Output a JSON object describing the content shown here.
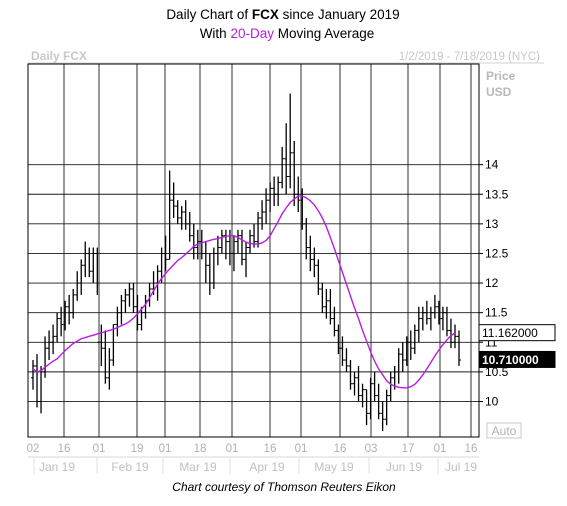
{
  "chart_data": {
    "type": "line",
    "title": {
      "line1_prefix": "Daily Chart of ",
      "line1_ticker": "FCX",
      "line1_suffix": " since January 2019",
      "line2_prefix": "With ",
      "line2_highlight": "20-Day",
      "line2_suffix": " Moving Average"
    },
    "chart_label": "Daily FCX",
    "date_range": "1/2/2019 - 7/18/2019 (NYC)",
    "ylabel": [
      "Price",
      "USD"
    ],
    "ylim": [
      9.4,
      15.7
    ],
    "y_ticks": [
      10,
      10.5,
      11,
      11.5,
      12,
      12.5,
      13,
      13.5,
      14
    ],
    "y_tick_labels": [
      "10",
      "10.5",
      "11",
      "11.5",
      "12",
      "12.5",
      "13",
      "13.5",
      "14"
    ],
    "x_day_ticks": [
      "02",
      "16",
      "01",
      "19",
      "01",
      "18",
      "01",
      "16",
      "01",
      "16",
      "03",
      "17",
      "01",
      "16"
    ],
    "x_month_labels": [
      "Jan 19",
      "Feb 19",
      "Mar 19",
      "Apr 19",
      "May 19",
      "Jun 19",
      "Jul 19"
    ],
    "auto_button": "Auto",
    "price_tags": [
      {
        "value": 11.162,
        "label": "11.162000",
        "style": "outline"
      },
      {
        "value": 10.71,
        "label": "10.710000",
        "style": "filled"
      }
    ],
    "series": [
      {
        "kind": "ohlc",
        "color": "#000000",
        "bars": [
          [
            10.4,
            10.7,
            10.2,
            10.6
          ],
          [
            10.6,
            10.8,
            9.9,
            10.0
          ],
          [
            10.0,
            10.6,
            9.8,
            10.5
          ],
          [
            10.5,
            11.1,
            10.4,
            10.9
          ],
          [
            10.9,
            11.2,
            10.7,
            11.0
          ],
          [
            11.0,
            11.3,
            10.8,
            11.1
          ],
          [
            11.1,
            11.5,
            11.0,
            11.4
          ],
          [
            11.4,
            11.6,
            11.1,
            11.3
          ],
          [
            11.3,
            11.7,
            11.2,
            11.6
          ],
          [
            11.6,
            11.8,
            11.3,
            11.5
          ],
          [
            11.5,
            11.9,
            11.4,
            11.8
          ],
          [
            11.8,
            12.2,
            11.7,
            12.0
          ],
          [
            12.0,
            12.4,
            11.8,
            12.3
          ],
          [
            12.3,
            12.7,
            12.1,
            12.5
          ],
          [
            12.5,
            12.6,
            12.1,
            12.2
          ],
          [
            12.2,
            12.6,
            12.0,
            12.5
          ],
          [
            12.5,
            12.6,
            11.8,
            11.0
          ],
          [
            11.0,
            11.3,
            10.6,
            10.9
          ],
          [
            10.9,
            11.2,
            10.3,
            10.4
          ],
          [
            10.4,
            10.9,
            10.2,
            10.7
          ],
          [
            10.7,
            11.3,
            10.6,
            11.3
          ],
          [
            11.3,
            11.6,
            11.1,
            11.5
          ],
          [
            11.5,
            11.8,
            11.3,
            11.7
          ],
          [
            11.7,
            11.9,
            11.5,
            11.8
          ],
          [
            11.8,
            12.0,
            11.6,
            11.9
          ],
          [
            11.9,
            12.0,
            11.5,
            11.6
          ],
          [
            11.6,
            11.8,
            11.2,
            11.3
          ],
          [
            11.3,
            11.6,
            11.2,
            11.5
          ],
          [
            11.5,
            11.8,
            11.4,
            11.7
          ],
          [
            11.7,
            12.0,
            11.6,
            11.9
          ],
          [
            11.9,
            12.2,
            11.8,
            12.0
          ],
          [
            12.0,
            12.3,
            11.7,
            12.2
          ],
          [
            12.2,
            12.6,
            12.0,
            12.5
          ],
          [
            12.5,
            12.8,
            12.2,
            12.4
          ],
          [
            12.4,
            13.9,
            12.4,
            13.4
          ],
          [
            13.4,
            13.7,
            13.1,
            13.3
          ],
          [
            13.3,
            13.4,
            13.0,
            13.1
          ],
          [
            13.1,
            13.3,
            12.9,
            13.2
          ],
          [
            13.2,
            13.4,
            12.9,
            13.0
          ],
          [
            13.0,
            13.2,
            12.7,
            12.8
          ],
          [
            12.8,
            13.0,
            12.4,
            12.6
          ],
          [
            12.6,
            12.9,
            12.4,
            12.7
          ],
          [
            12.7,
            12.9,
            12.4,
            12.5
          ],
          [
            12.5,
            12.7,
            12.0,
            12.3
          ],
          [
            12.3,
            12.5,
            11.8,
            12.0
          ],
          [
            12.0,
            12.6,
            11.9,
            12.5
          ],
          [
            12.5,
            12.8,
            12.3,
            12.6
          ],
          [
            12.6,
            12.9,
            12.5,
            12.8
          ],
          [
            12.8,
            12.9,
            12.4,
            12.7
          ],
          [
            12.7,
            12.9,
            12.3,
            12.5
          ],
          [
            12.5,
            12.8,
            12.2,
            12.7
          ],
          [
            12.7,
            12.9,
            12.5,
            12.8
          ],
          [
            12.8,
            12.9,
            12.3,
            12.4
          ],
          [
            12.4,
            12.7,
            12.1,
            12.6
          ],
          [
            12.6,
            12.9,
            12.5,
            12.8
          ],
          [
            12.8,
            13.0,
            12.6,
            12.7
          ],
          [
            12.7,
            13.2,
            12.6,
            13.1
          ],
          [
            13.1,
            13.4,
            12.9,
            13.2
          ],
          [
            13.2,
            13.6,
            13.0,
            13.4
          ],
          [
            13.4,
            13.7,
            13.2,
            13.6
          ],
          [
            13.6,
            13.8,
            13.3,
            13.5
          ],
          [
            13.5,
            13.8,
            13.3,
            13.7
          ],
          [
            13.7,
            14.3,
            13.6,
            14.1
          ],
          [
            14.1,
            14.7,
            13.5,
            13.8
          ],
          [
            13.8,
            15.2,
            13.6,
            14.2
          ],
          [
            14.2,
            14.4,
            13.3,
            13.5
          ],
          [
            13.5,
            13.8,
            13.2,
            13.4
          ],
          [
            13.4,
            13.6,
            12.9,
            13.0
          ],
          [
            13.0,
            13.1,
            12.4,
            12.6
          ],
          [
            12.6,
            12.8,
            12.2,
            12.4
          ],
          [
            12.4,
            12.6,
            12.1,
            12.3
          ],
          [
            12.3,
            12.4,
            11.8,
            11.9
          ],
          [
            11.9,
            12.0,
            11.5,
            11.6
          ],
          [
            11.6,
            11.9,
            11.4,
            11.7
          ],
          [
            11.7,
            11.9,
            11.3,
            11.4
          ],
          [
            11.4,
            11.6,
            11.1,
            11.2
          ],
          [
            11.2,
            11.3,
            10.8,
            10.9
          ],
          [
            10.9,
            11.1,
            10.6,
            10.7
          ],
          [
            10.7,
            10.9,
            10.5,
            10.6
          ],
          [
            10.6,
            10.7,
            10.2,
            10.3
          ],
          [
            10.3,
            10.5,
            10.1,
            10.4
          ],
          [
            10.4,
            10.6,
            10.0,
            10.1
          ],
          [
            10.1,
            10.3,
            9.9,
            10.2
          ],
          [
            10.2,
            10.2,
            9.6,
            9.8
          ],
          [
            9.8,
            10.4,
            9.7,
            10.3
          ],
          [
            10.3,
            10.5,
            10.0,
            10.1
          ],
          [
            10.1,
            10.3,
            9.7,
            9.8
          ],
          [
            9.8,
            10.0,
            9.5,
            9.7
          ],
          [
            9.7,
            10.2,
            9.6,
            10.1
          ],
          [
            10.1,
            10.5,
            10.0,
            10.4
          ],
          [
            10.4,
            10.6,
            10.2,
            10.5
          ],
          [
            10.5,
            10.9,
            10.3,
            10.8
          ],
          [
            10.8,
            11.0,
            10.5,
            10.7
          ],
          [
            10.7,
            11.1,
            10.6,
            11.0
          ],
          [
            11.0,
            11.2,
            10.7,
            10.9
          ],
          [
            10.9,
            11.3,
            10.8,
            11.2
          ],
          [
            11.2,
            11.6,
            11.0,
            11.4
          ],
          [
            11.4,
            11.6,
            11.2,
            11.5
          ],
          [
            11.5,
            11.7,
            11.3,
            11.4
          ],
          [
            11.4,
            11.6,
            11.2,
            11.5
          ],
          [
            11.5,
            11.8,
            11.4,
            11.6
          ],
          [
            11.6,
            11.7,
            11.3,
            11.4
          ],
          [
            11.4,
            11.6,
            11.2,
            11.5
          ],
          [
            11.5,
            11.6,
            11.1,
            11.2
          ],
          [
            11.2,
            11.4,
            10.9,
            11.0
          ],
          [
            11.0,
            11.3,
            10.9,
            11.1
          ],
          [
            11.1,
            11.2,
            10.6,
            10.7
          ]
        ]
      },
      {
        "kind": "line",
        "color": "#b81de0",
        "values": [
          10.55,
          10.5,
          10.52,
          10.58,
          10.63,
          10.68,
          10.72,
          10.79,
          10.86,
          10.92,
          10.98,
          11.02,
          11.06,
          11.08,
          11.1,
          11.12,
          11.14,
          11.16,
          11.18,
          11.2,
          11.22,
          11.25,
          11.28,
          11.31,
          11.35,
          11.41,
          11.48,
          11.56,
          11.64,
          11.75,
          11.87,
          11.98,
          12.08,
          12.16,
          12.24,
          12.31,
          12.38,
          12.43,
          12.49,
          12.55,
          12.62,
          12.66,
          12.68,
          12.7,
          12.72,
          12.74,
          12.75,
          12.77,
          12.79,
          12.8,
          12.8,
          12.77,
          12.73,
          12.69,
          12.67,
          12.66,
          12.66,
          12.68,
          12.72,
          12.8,
          12.92,
          13.04,
          13.17,
          13.27,
          13.36,
          13.42,
          13.47,
          13.47,
          13.44,
          13.39,
          13.32,
          13.22,
          13.1,
          12.95,
          12.77,
          12.58,
          12.38,
          12.18,
          11.98,
          11.78,
          11.58,
          11.4,
          11.2,
          11.02,
          10.84,
          10.68,
          10.55,
          10.45,
          10.35,
          10.29,
          10.26,
          10.24,
          10.23,
          10.23,
          10.25,
          10.29,
          10.36,
          10.45,
          10.55,
          10.66,
          10.77,
          10.87,
          10.96,
          11.04,
          11.11,
          11.16
        ]
      }
    ],
    "credit": "Chart courtesy of Thomson Reuters Eikon"
  }
}
